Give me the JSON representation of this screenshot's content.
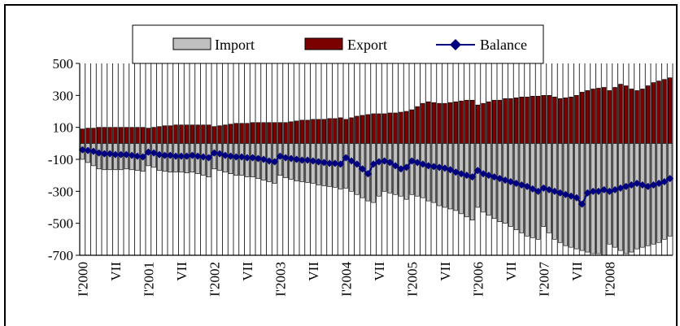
{
  "chart_data": {
    "type": "bar",
    "title": "",
    "xlabel": "",
    "ylabel": "",
    "ylim": [
      -700,
      500
    ],
    "y_ticks": [
      500,
      300,
      100,
      -100,
      -300,
      -500,
      -700
    ],
    "x_tick_labels": [
      "I'2000",
      "VII",
      "I'2001",
      "VII",
      "I'2002",
      "VII",
      "I'2003",
      "VII",
      "I'2004",
      "VII",
      "I'2005",
      "VII",
      "I'2006",
      "VII",
      "I'2007",
      "VII",
      "I'2008"
    ],
    "legend": {
      "position": "top-center",
      "items": [
        "Import",
        "Export",
        "Balance"
      ]
    },
    "grid": "vertical lines per month",
    "months": 108,
    "series": [
      {
        "name": "Import",
        "type": "bar",
        "color": "#c0c0c0",
        "values": [
          -100,
          -120,
          -140,
          -160,
          -165,
          -165,
          -165,
          -165,
          -160,
          -165,
          -170,
          -175,
          -140,
          -150,
          -170,
          -175,
          -180,
          -180,
          -180,
          -185,
          -180,
          -190,
          -200,
          -210,
          -160,
          -170,
          -180,
          -190,
          -200,
          -200,
          -210,
          -210,
          -220,
          -230,
          -240,
          -250,
          -200,
          -215,
          -225,
          -235,
          -240,
          -245,
          -250,
          -260,
          -265,
          -270,
          -275,
          -285,
          -280,
          -300,
          -320,
          -340,
          -360,
          -370,
          -330,
          -300,
          -310,
          -320,
          -330,
          -350,
          -320,
          -330,
          -340,
          -360,
          -370,
          -390,
          -400,
          -410,
          -420,
          -440,
          -460,
          -480,
          -400,
          -430,
          -450,
          -470,
          -490,
          -500,
          -520,
          -540,
          -560,
          -580,
          -590,
          -600,
          -520,
          -560,
          -600,
          -620,
          -640,
          -650,
          -660,
          -670,
          -680,
          -690,
          -690,
          -700,
          -630,
          -650,
          -670,
          -690,
          -680,
          -660,
          -650,
          -640,
          -630,
          -620,
          -600,
          -580
        ]
      },
      {
        "name": "Export",
        "type": "bar",
        "color": "#7b0000",
        "values": [
          90,
          95,
          95,
          100,
          100,
          100,
          100,
          100,
          100,
          100,
          100,
          100,
          95,
          100,
          105,
          110,
          110,
          115,
          115,
          115,
          115,
          115,
          115,
          115,
          105,
          110,
          115,
          120,
          125,
          125,
          125,
          130,
          130,
          130,
          130,
          130,
          130,
          130,
          135,
          140,
          145,
          145,
          150,
          150,
          150,
          155,
          155,
          160,
          150,
          160,
          170,
          175,
          180,
          185,
          185,
          185,
          190,
          190,
          195,
          200,
          210,
          230,
          250,
          260,
          255,
          250,
          250,
          255,
          260,
          265,
          270,
          270,
          240,
          250,
          260,
          270,
          270,
          280,
          280,
          285,
          290,
          290,
          295,
          295,
          300,
          300,
          290,
          280,
          285,
          290,
          300,
          320,
          330,
          340,
          345,
          350,
          330,
          350,
          370,
          360,
          340,
          330,
          340,
          360,
          380,
          390,
          400,
          410
        ]
      },
      {
        "name": "Balance",
        "type": "line",
        "color": "#000080",
        "values": [
          -40,
          -45,
          -50,
          -60,
          -65,
          -65,
          -70,
          -70,
          -70,
          -75,
          -80,
          -85,
          -55,
          -60,
          -70,
          -75,
          -75,
          -80,
          -80,
          -80,
          -75,
          -80,
          -85,
          -90,
          -60,
          -65,
          -75,
          -80,
          -85,
          -85,
          -90,
          -90,
          -95,
          -100,
          -110,
          -115,
          -80,
          -90,
          -95,
          -100,
          -105,
          -105,
          -110,
          -115,
          -120,
          -125,
          -125,
          -130,
          -90,
          -110,
          -130,
          -160,
          -190,
          -130,
          -115,
          -110,
          -120,
          -140,
          -160,
          -150,
          -110,
          -120,
          -130,
          -140,
          -145,
          -150,
          -155,
          -165,
          -180,
          -190,
          -200,
          -210,
          -170,
          -190,
          -200,
          -210,
          -220,
          -230,
          -240,
          -250,
          -260,
          -270,
          -285,
          -300,
          -280,
          -290,
          -300,
          -310,
          -320,
          -330,
          -340,
          -380,
          -310,
          -300,
          -300,
          -290,
          -300,
          -290,
          -280,
          -270,
          -260,
          -250,
          -260,
          -270,
          -260,
          -250,
          -240,
          -220
        ]
      }
    ]
  }
}
